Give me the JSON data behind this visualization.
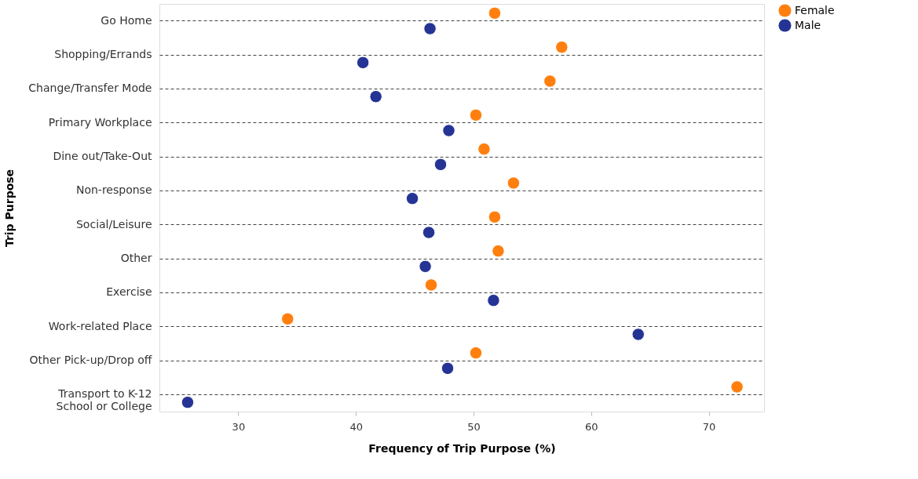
{
  "chart_data": {
    "type": "scatter",
    "orientation": "horizontal",
    "xlabel": "Frequency of Trip Purpose (%)",
    "ylabel": "Trip Purpose",
    "categories": [
      "Go Home",
      "Shopping/Errands",
      "Change/Transfer Mode",
      "Primary Workplace",
      "Dine out/Take-Out",
      "Non-response",
      "Social/Leisure",
      "Other",
      "Exercise",
      "Work-related Place",
      "Other Pick-up/Drop off",
      "Transport to K-12 School or College"
    ],
    "series": [
      {
        "name": "Female",
        "color": "#ff7f0e",
        "values": [
          51.8,
          57.5,
          56.5,
          50.2,
          50.9,
          53.4,
          51.8,
          52.1,
          46.4,
          34.2,
          50.2,
          72.4
        ]
      },
      {
        "name": "Male",
        "color": "#253494",
        "values": [
          46.3,
          40.6,
          41.7,
          47.9,
          47.2,
          44.8,
          46.2,
          45.9,
          51.7,
          64.0,
          47.8,
          25.7
        ]
      }
    ],
    "xlim": [
      23.3,
      74.7
    ],
    "xticks": [
      30,
      40,
      50,
      60,
      70
    ],
    "grid": "y",
    "legend": "top right",
    "marker": "circle"
  }
}
